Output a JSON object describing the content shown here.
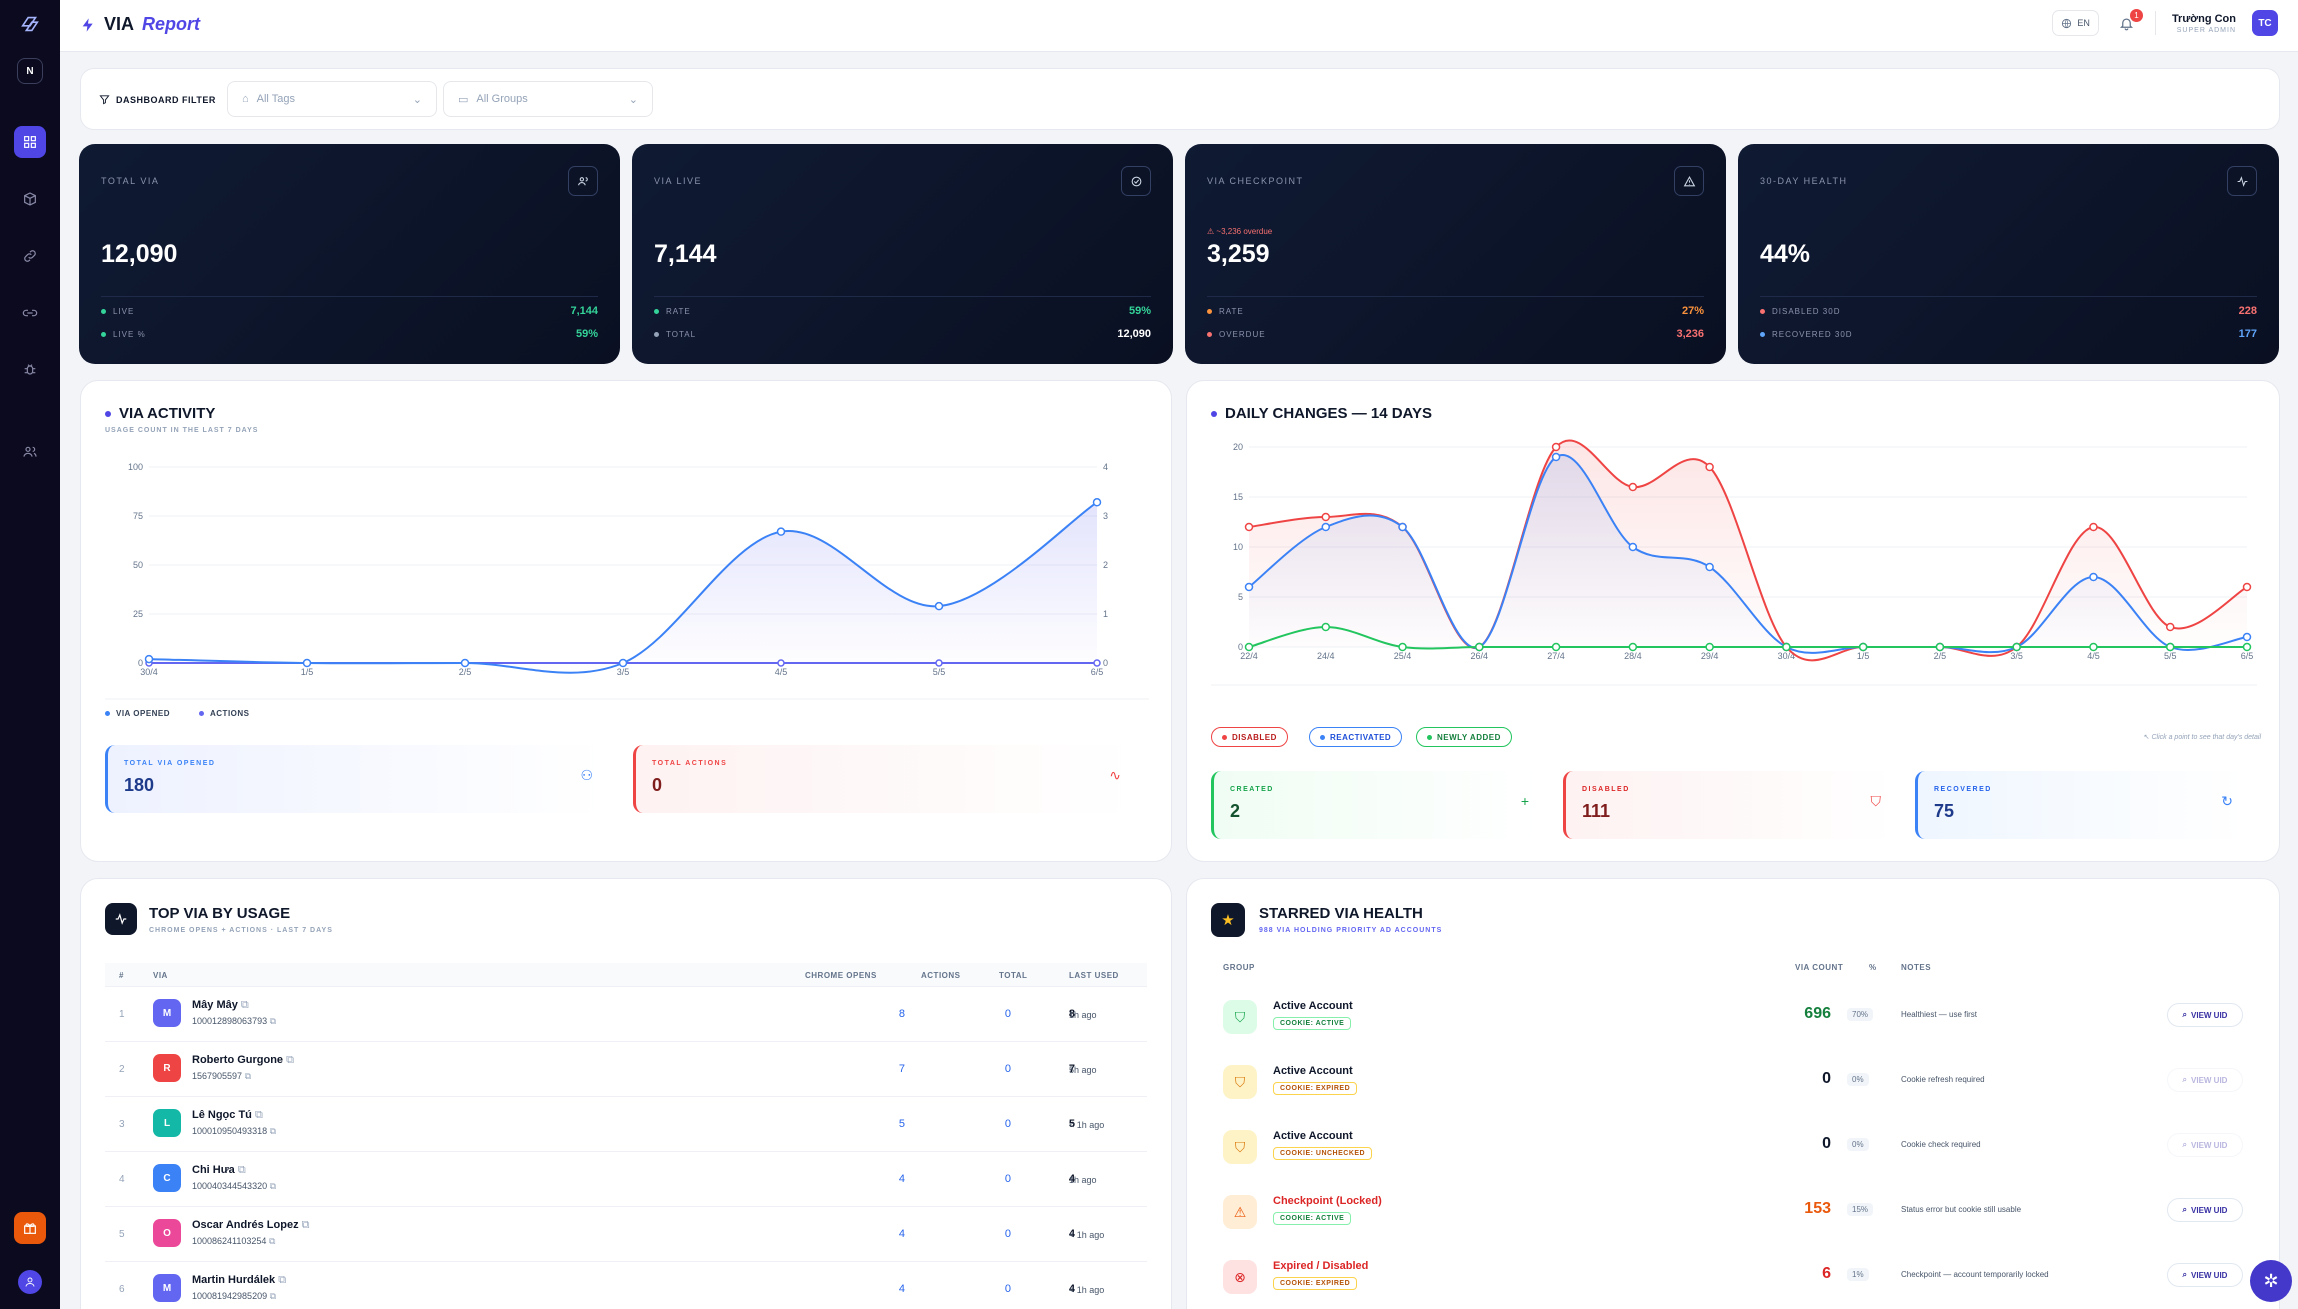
{
  "rail": {
    "workspace_initial": "N"
  },
  "topbar": {
    "brand_via": "VIA",
    "brand_report": "Report",
    "lang": "EN",
    "notif_count": "1",
    "user_name": "Trường Con",
    "user_role": "SUPER ADMIN",
    "user_initials": "TC"
  },
  "filter": {
    "label": "DASHBOARD FILTER",
    "tags_placeholder": "All Tags",
    "groups_placeholder": "All Groups"
  },
  "kpis": [
    {
      "title": "TOTAL VIA",
      "value": "12,090",
      "overdue": "",
      "rows": [
        {
          "label": "LIVE",
          "value": "7,144",
          "color": "#34d399"
        },
        {
          "label": "LIVE %",
          "value": "59%",
          "color": "#34d399"
        }
      ]
    },
    {
      "title": "VIA LIVE",
      "value": "7,144",
      "overdue": "",
      "rows": [
        {
          "label": "RATE",
          "value": "59%",
          "color": "#34d399"
        },
        {
          "label": "TOTAL",
          "value": "12,090",
          "color": "#ffffff"
        }
      ]
    },
    {
      "title": "VIA CHECKPOINT",
      "value": "3,259",
      "overdue": "~3,236 overdue",
      "rows": [
        {
          "label": "RATE",
          "value": "27%",
          "color": "#fb923c"
        },
        {
          "label": "OVERDUE",
          "value": "3,236",
          "color": "#f87171"
        }
      ]
    },
    {
      "title": "30-DAY HEALTH",
      "value": "44%",
      "overdue": "",
      "rows": [
        {
          "label": "DISABLED 30D",
          "value": "228",
          "color": "#f87171"
        },
        {
          "label": "RECOVERED 30D",
          "value": "177",
          "color": "#60a5fa"
        }
      ]
    }
  ],
  "activity": {
    "title": "VIA ACTIVITY",
    "subtitle": "USAGE COUNT IN THE LAST 7 DAYS",
    "legend_opened": "VIA OPENED",
    "legend_actions": "ACTIONS",
    "total_opened_label": "TOTAL VIA OPENED",
    "total_opened": "180",
    "total_actions_label": "TOTAL ACTIONS",
    "total_actions": "0"
  },
  "daily": {
    "title": "DAILY CHANGES — 14 DAYS",
    "pill_disabled": "DISABLED",
    "pill_reactivated": "REACTIVATED",
    "pill_new": "NEWLY ADDED",
    "hint": "Click a point to see that day's detail",
    "created_label": "CREATED",
    "created": "2",
    "disabled_label": "DISABLED",
    "disabled": "111",
    "recovered_label": "RECOVERED",
    "recovered": "75"
  },
  "chart_data": [
    {
      "type": "line",
      "x": [
        "30/4",
        "1/5",
        "2/5",
        "3/5",
        "4/5",
        "5/5",
        "6/5"
      ],
      "ylim": [
        0,
        100
      ],
      "y2lim": [
        0,
        4
      ],
      "yticks": [
        "0",
        "25",
        "50",
        "75",
        "100"
      ],
      "y2ticks": [
        "0",
        "1",
        "2",
        "3",
        "4"
      ],
      "series": [
        {
          "name": "VIA OPENED",
          "color": "#3b82f6",
          "values": [
            2,
            0,
            0,
            0,
            67,
            29,
            82
          ]
        },
        {
          "name": "ACTIONS",
          "color": "#6366f1",
          "values": [
            0,
            0,
            0,
            0,
            0,
            0,
            0
          ],
          "axis": "right"
        }
      ]
    },
    {
      "type": "line",
      "x": [
        "22/4",
        "24/4",
        "25/4",
        "26/4",
        "27/4",
        "28/4",
        "29/4",
        "30/4",
        "1/5",
        "2/5",
        "3/5",
        "4/5",
        "5/5",
        "6/5"
      ],
      "ylim": [
        0,
        20
      ],
      "yticks": [
        "0",
        "5",
        "10",
        "15",
        "20"
      ],
      "series": [
        {
          "name": "DISABLED",
          "color": "#ef4444",
          "values": [
            12,
            13,
            12,
            0,
            20,
            16,
            18,
            0,
            0,
            0,
            0,
            12,
            2,
            6
          ]
        },
        {
          "name": "REACTIVATED",
          "color": "#3b82f6",
          "values": [
            6,
            12,
            12,
            0,
            19,
            10,
            8,
            0,
            0,
            0,
            0,
            7,
            0,
            1
          ]
        },
        {
          "name": "NEWLY ADDED",
          "color": "#22c55e",
          "values": [
            0,
            2,
            0,
            0,
            0,
            0,
            0,
            0,
            0,
            0,
            0,
            0,
            0,
            0
          ]
        }
      ]
    }
  ],
  "top": {
    "title": "TOP VIA BY USAGE",
    "subtitle": "CHROME OPENS + ACTIONS · LAST 7 DAYS",
    "headers": {
      "idx": "#",
      "via": "VIA",
      "opens": "CHROME OPENS",
      "actions": "ACTIONS",
      "total": "TOTAL",
      "last": "LAST USED"
    },
    "rows": [
      {
        "idx": "1",
        "initial": "M",
        "color": "#6366f1",
        "name": "Mây Mây",
        "uid": "100012898063793",
        "opens": "8",
        "actions": "0",
        "total": "8",
        "last": "1h ago"
      },
      {
        "idx": "2",
        "initial": "R",
        "color": "#ef4444",
        "name": "Roberto Gurgone",
        "uid": "1567905597",
        "opens": "7",
        "actions": "0",
        "total": "7",
        "last": "5h ago"
      },
      {
        "idx": "3",
        "initial": "L",
        "color": "#14b8a6",
        "name": "Lê Ngọc Tú",
        "uid": "100010950493318",
        "opens": "5",
        "actions": "0",
        "total": "5",
        "last": "< 1h ago"
      },
      {
        "idx": "4",
        "initial": "C",
        "color": "#3b82f6",
        "name": "Chi Hưa",
        "uid": "100040344543320",
        "opens": "4",
        "actions": "0",
        "total": "4",
        "last": "1h ago"
      },
      {
        "idx": "5",
        "initial": "O",
        "color": "#ec4899",
        "name": "Oscar Andrés Lopez",
        "uid": "100086241103254",
        "opens": "4",
        "actions": "0",
        "total": "4",
        "last": "< 1h ago"
      },
      {
        "idx": "6",
        "initial": "M",
        "color": "#6366f1",
        "name": "Martin Hurdálek",
        "uid": "100081942985209",
        "opens": "4",
        "actions": "0",
        "total": "4",
        "last": "< 1h ago"
      }
    ]
  },
  "starred": {
    "title": "STARRED VIA HEALTH",
    "subtitle": "988 VIA HOLDING PRIORITY AD ACCOUNTS",
    "headers": {
      "group": "GROUP",
      "count": "VIA COUNT",
      "pct": "%",
      "notes": "NOTES"
    },
    "view_label": "VIEW UID",
    "rows": [
      {
        "group": "Active Account",
        "cookie": "COOKIE: ACTIVE",
        "count": "696",
        "pct": "70%",
        "note": "Healthiest — use first",
        "tone": "green",
        "group_color": "#0f172a",
        "count_color": "#15803d"
      },
      {
        "group": "Active Account",
        "cookie": "COOKIE: EXPIRED",
        "count": "0",
        "pct": "0%",
        "note": "Cookie refresh required",
        "tone": "amber",
        "group_color": "#0f172a",
        "count_color": "#0f172a"
      },
      {
        "group": "Active Account",
        "cookie": "COOKIE: UNCHECKED",
        "count": "0",
        "pct": "0%",
        "note": "Cookie check required",
        "tone": "amber",
        "group_color": "#0f172a",
        "count_color": "#0f172a"
      },
      {
        "group": "Checkpoint (Locked)",
        "cookie": "COOKIE: ACTIVE",
        "count": "153",
        "pct": "15%",
        "note": "Status error but cookie still usable",
        "tone": "orange",
        "group_color": "#dc2626",
        "count_color": "#ea580c"
      },
      {
        "group": "Expired / Disabled",
        "cookie": "COOKIE: EXPIRED",
        "count": "6",
        "pct": "1%",
        "note": "Checkpoint — account temporarily locked",
        "tone": "red",
        "group_color": "#dc2626",
        "count_color": "#dc2626"
      }
    ]
  }
}
